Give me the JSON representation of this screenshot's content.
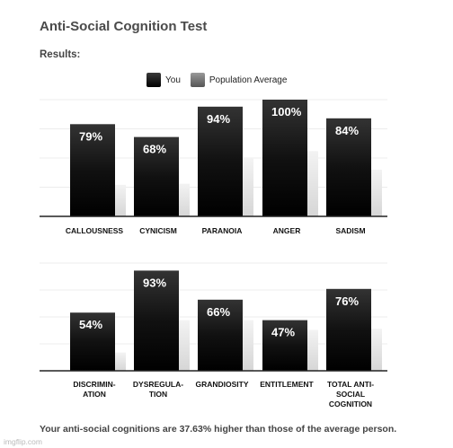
{
  "header": {
    "title": "Anti-Social Cognition Test",
    "results_label": "Results:"
  },
  "legend": {
    "you": "You",
    "population": "Population Average"
  },
  "footer": {
    "summary": "Your anti-social cognitions are 37.63% higher than those of the average person."
  },
  "watermark": "imgflip.com",
  "chart_data": [
    {
      "type": "bar",
      "ylim": [
        0,
        100
      ],
      "grid": true,
      "legend_position": "top-center",
      "categories": [
        [
          "CALLOUSNESS"
        ],
        [
          "CYNICISM"
        ],
        [
          "PARANOIA"
        ],
        [
          "ANGER"
        ],
        [
          "SADISM"
        ]
      ],
      "series": [
        {
          "name": "You",
          "values": [
            79,
            68,
            94,
            100,
            84
          ],
          "labels": [
            "79%",
            "68%",
            "94%",
            "100%",
            "84%"
          ],
          "color": "#111111"
        },
        {
          "name": "Population Average",
          "values": [
            27,
            28,
            50,
            56,
            40
          ],
          "color": "#e4e4e4"
        }
      ]
    },
    {
      "type": "bar",
      "ylim": [
        0,
        100
      ],
      "grid": true,
      "categories": [
        [
          "DISCRIMIN-",
          "ATION"
        ],
        [
          "DYSREGULA-",
          "TION"
        ],
        [
          "GRANDIOSITY"
        ],
        [
          "ENTITLEMENT"
        ],
        [
          "TOTAL ANTI-",
          "SOCIAL",
          "COGNITION"
        ]
      ],
      "series": [
        {
          "name": "You",
          "values": [
            54,
            93,
            66,
            47,
            76
          ],
          "labels": [
            "54%",
            "93%",
            "66%",
            "47%",
            "76%"
          ],
          "color": "#111111"
        },
        {
          "name": "Population Average",
          "values": [
            17,
            47,
            47,
            38,
            39
          ],
          "color": "#e4e4e4"
        }
      ]
    }
  ]
}
